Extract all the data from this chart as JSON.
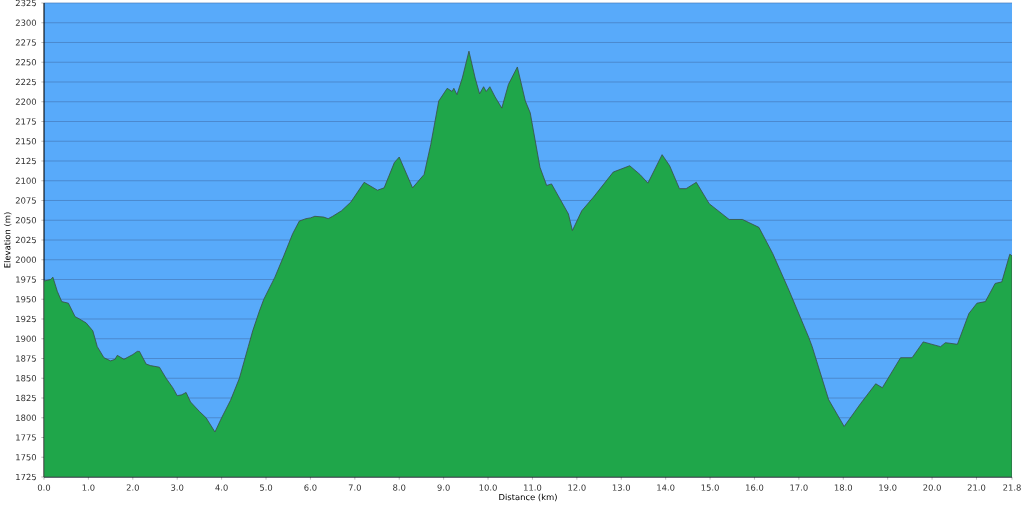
{
  "chart_data": {
    "type": "area",
    "xlabel": "Distance   (km)",
    "ylabel": "Elevation (m)",
    "x": [
      0.0,
      0.15,
      0.2,
      0.3,
      0.4,
      0.55,
      0.7,
      0.8,
      0.95,
      1.1,
      1.2,
      1.35,
      1.5,
      1.6,
      1.65,
      1.8,
      2.0,
      2.1,
      2.15,
      2.3,
      2.4,
      2.6,
      2.75,
      2.9,
      3.0,
      3.1,
      3.2,
      3.3,
      3.5,
      3.65,
      3.85,
      4.0,
      4.2,
      4.4,
      4.6,
      4.7,
      4.85,
      4.95,
      5.2,
      5.4,
      5.6,
      5.75,
      5.9,
      6.0,
      6.1,
      6.3,
      6.4,
      6.5,
      6.7,
      6.91,
      7.21,
      7.51,
      7.66,
      7.89,
      8.0,
      8.3,
      8.56,
      8.71,
      8.89,
      9.08,
      9.19,
      9.23,
      9.3,
      9.42,
      9.57,
      9.71,
      9.81,
      9.9,
      9.96,
      10.04,
      10.16,
      10.31,
      10.46,
      10.66,
      10.84,
      10.95,
      11.17,
      11.32,
      11.43,
      11.62,
      11.81,
      11.9,
      12.11,
      12.37,
      12.82,
      13.19,
      13.42,
      13.6,
      13.92,
      14.09,
      14.31,
      14.46,
      14.69,
      14.98,
      15.43,
      15.73,
      16.1,
      16.41,
      16.78,
      17.22,
      17.3,
      17.67,
      18.02,
      18.39,
      18.73,
      18.88,
      19.29,
      19.55,
      19.8,
      20.19,
      20.3,
      20.57,
      20.83,
      21.01,
      21.2,
      21.42,
      21.57,
      21.75,
      21.8
    ],
    "series": [
      {
        "color": "#1fa64a",
        "values": [
          1973,
          1975,
          1978,
          1960,
          1947,
          1945,
          1928,
          1925,
          1920,
          1910,
          1890,
          1876,
          1872,
          1874,
          1879,
          1874,
          1880,
          1884,
          1884,
          1868,
          1866,
          1864,
          1850,
          1838,
          1828,
          1829,
          1832,
          1820,
          1808,
          1800,
          1782,
          1800,
          1822,
          1850,
          1890,
          1910,
          1935,
          1950,
          1978,
          2005,
          2033,
          2049,
          2052,
          2053,
          2055,
          2054,
          2052,
          2055,
          2062,
          2073,
          2098,
          2088,
          2091,
          2123,
          2130,
          2091,
          2108,
          2146,
          2201,
          2217,
          2213,
          2217,
          2209,
          2230,
          2264,
          2230,
          2210,
          2219,
          2213,
          2219,
          2206,
          2192,
          2222,
          2244,
          2201,
          2186,
          2117,
          2094,
          2096,
          2077,
          2058,
          2037,
          2062,
          2079,
          2111,
          2119,
          2108,
          2097,
          2133,
          2119,
          2090,
          2090,
          2098,
          2071,
          2051,
          2051,
          2041,
          2008,
          1961,
          1902,
          1890,
          1823,
          1789,
          1818,
          1843,
          1838,
          1876,
          1876,
          1896,
          1890,
          1895,
          1893,
          1932,
          1945,
          1947,
          1970,
          1972,
          2007,
          2005
        ]
      }
    ],
    "xlim": [
      0,
      21.8
    ],
    "ylim": [
      1725,
      2325
    ],
    "xticks": [
      {
        "value": 0,
        "label": "0.0"
      },
      {
        "value": 1,
        "label": "1.0"
      },
      {
        "value": 2,
        "label": "2.0"
      },
      {
        "value": 3,
        "label": "3.0"
      },
      {
        "value": 4,
        "label": "4.0"
      },
      {
        "value": 5,
        "label": "5.0"
      },
      {
        "value": 6,
        "label": "6.0"
      },
      {
        "value": 7,
        "label": "7.0"
      },
      {
        "value": 8,
        "label": "8.0"
      },
      {
        "value": 9,
        "label": "9.0"
      },
      {
        "value": 10,
        "label": "10.0"
      },
      {
        "value": 11,
        "label": "11.0"
      },
      {
        "value": 12,
        "label": "12.0"
      },
      {
        "value": 13,
        "label": "13.0"
      },
      {
        "value": 14,
        "label": "14.0"
      },
      {
        "value": 15,
        "label": "15.0"
      },
      {
        "value": 16,
        "label": "16.0"
      },
      {
        "value": 17,
        "label": "17.0"
      },
      {
        "value": 18,
        "label": "18.0"
      },
      {
        "value": 19,
        "label": "19.0"
      },
      {
        "value": 20,
        "label": "20.0"
      },
      {
        "value": 21,
        "label": "21.0"
      },
      {
        "value": 21.8,
        "label": "21.8"
      }
    ],
    "yticks": [
      1725,
      1750,
      1775,
      1800,
      1825,
      1850,
      1875,
      1900,
      1925,
      1950,
      1975,
      2000,
      2025,
      2050,
      2075,
      2100,
      2125,
      2150,
      2175,
      2200,
      2225,
      2250,
      2275,
      2300,
      2325
    ],
    "grid": "y"
  }
}
